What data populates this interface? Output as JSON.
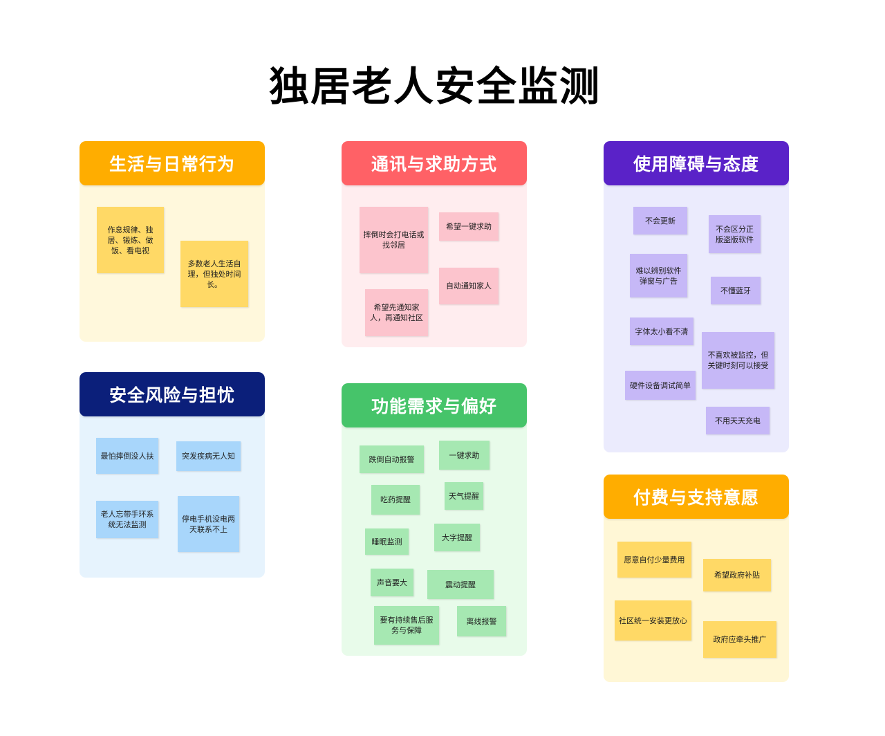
{
  "title": "独居老人安全监测",
  "colors": {
    "orange": "#ffad00",
    "red": "#ff6166",
    "purple": "#5a22c8",
    "navy": "#0b1f7a",
    "green": "#46c46a"
  },
  "groups": {
    "daily": {
      "title": "生活与日常行为",
      "notes": [
        "作息规律、独居、锻炼、做饭、看电视",
        "多数老人生活自理，但独处时间长。"
      ]
    },
    "comm": {
      "title": "通讯与求助方式",
      "notes": [
        "摔倒时会打电话或找邻居",
        "希望一键求助",
        "自动通知家人",
        "希望先通知家人，再通知社区"
      ]
    },
    "barrier": {
      "title": "使用障碍与态度",
      "notes": [
        "不会更新",
        "不会区分正版盗版软件",
        "难以辨别软件弹窗与广告",
        "不懂蓝牙",
        "字体太小看不清",
        "不喜欢被监控，但关键时刻可以接受",
        "硬件设备调试简单",
        "不用天天充电"
      ]
    },
    "risk": {
      "title": "安全风险与担忧",
      "notes": [
        "最怕摔倒没人扶",
        "突发疾病无人知",
        "老人忘带手环系统无法监测",
        "停电手机没电两天联系不上"
      ]
    },
    "feature": {
      "title": "功能需求与偏好",
      "notes": [
        "跌倒自动报警",
        "一键求助",
        "吃药提醒",
        "天气提醒",
        "睡眠监测",
        "大字提醒",
        "声音要大",
        "震动提醒",
        "要有持续售后服务与保障",
        "离线报警"
      ]
    },
    "pay": {
      "title": "付费与支持意愿",
      "notes": [
        "愿意自付少量费用",
        "希望政府补贴",
        "社区统一安装更放心",
        "政府应牵头推广"
      ]
    }
  }
}
